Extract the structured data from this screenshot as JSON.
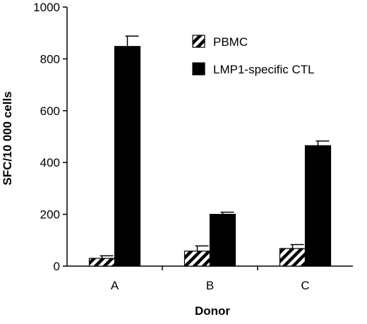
{
  "chart_data": {
    "type": "bar",
    "title": "",
    "xlabel": "Donor",
    "ylabel": "SFC/10 000 cells",
    "categories": [
      "A",
      "B",
      "C"
    ],
    "ylim": [
      0,
      1000
    ],
    "yticks": [
      0,
      200,
      400,
      600,
      800,
      1000
    ],
    "grid": false,
    "legend_position": "top-right",
    "series": [
      {
        "name": "PBMC",
        "pattern": "hatched",
        "color": "#ffffff",
        "values": [
          30,
          58,
          68
        ],
        "errors": [
          10,
          20,
          15
        ]
      },
      {
        "name": "LMP1-specific CTL",
        "pattern": "solid",
        "color": "#000000",
        "values": [
          848,
          200,
          465
        ],
        "errors": [
          40,
          8,
          18
        ]
      }
    ]
  }
}
